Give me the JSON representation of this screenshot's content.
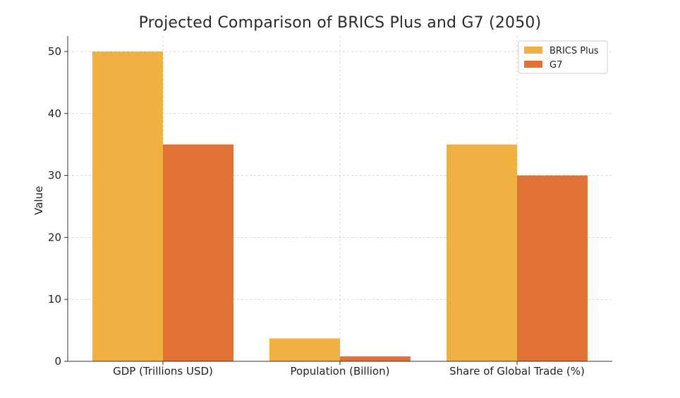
{
  "chart_data": {
    "type": "bar",
    "title": "Projected Comparison of BRICS Plus and G7 (2050)",
    "xlabel": "",
    "ylabel": "Value",
    "categories": [
      "GDP (Trillions USD)",
      "Population (Billion)",
      "Share of Global Trade (%)"
    ],
    "series": [
      {
        "name": "BRICS Plus",
        "values": [
          50,
          3.7,
          35
        ],
        "color": "#F0B142"
      },
      {
        "name": "G7",
        "values": [
          35,
          0.8,
          30
        ],
        "color": "#E27136"
      }
    ],
    "yticks": [
      0,
      10,
      20,
      30,
      40,
      50
    ],
    "ylim": [
      0,
      52.5
    ],
    "grid": true,
    "legend_position": "top-right"
  }
}
